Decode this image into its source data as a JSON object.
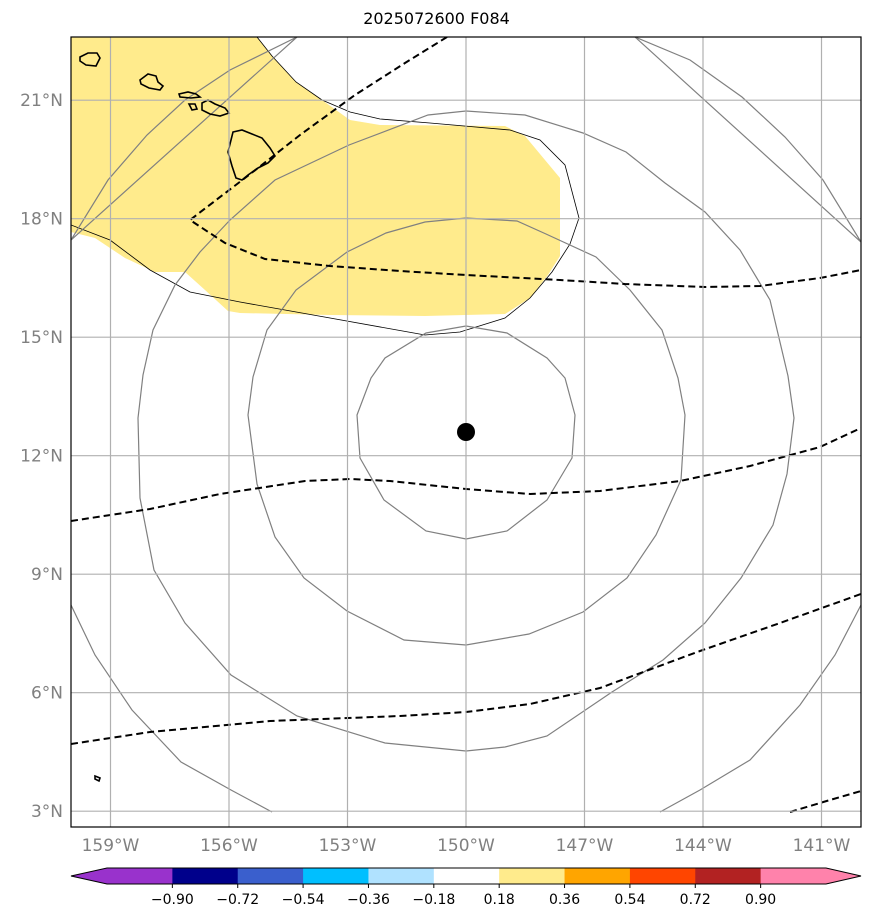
{
  "title": "2025072600 F084",
  "map": {
    "lon_range": [
      -160,
      -140
    ],
    "lat_range": [
      2.6,
      22.6
    ],
    "lon_ticks": [
      -159,
      -156,
      -153,
      -150,
      -147,
      -144,
      -141
    ],
    "lat_ticks": [
      3,
      6,
      9,
      12,
      15,
      18,
      21
    ],
    "lon_tick_labels": [
      "159°W",
      "156°W",
      "153°W",
      "150°W",
      "147°W",
      "144°W",
      "141°W"
    ],
    "lat_tick_labels": [
      "3°N",
      "6°N",
      "9°N",
      "12°N",
      "15°N",
      "18°N",
      "21°N"
    ],
    "grid": true,
    "center_marker": {
      "lon": -150.0,
      "lat": 12.6,
      "color": "#000000"
    },
    "range_rings_deg": [
      2.75,
      5.5,
      8.25,
      11.0
    ],
    "filled_region_color": "#ffeb8c"
  },
  "colorbar": {
    "colors": [
      "#9932cc",
      "#00008b",
      "#3a5fcd",
      "#00bfff",
      "#b0e2ff",
      "#ffffff",
      "#ffeb8c",
      "#ffa500",
      "#ff4500",
      "#b22222",
      "#ff82ab",
      "#ff82ab"
    ],
    "tick_labels": [
      "−0.90",
      "−0.72",
      "−0.54",
      "−0.36",
      "−0.18",
      "0.18",
      "0.36",
      "0.54",
      "0.72",
      "0.90"
    ],
    "extend": "both"
  }
}
